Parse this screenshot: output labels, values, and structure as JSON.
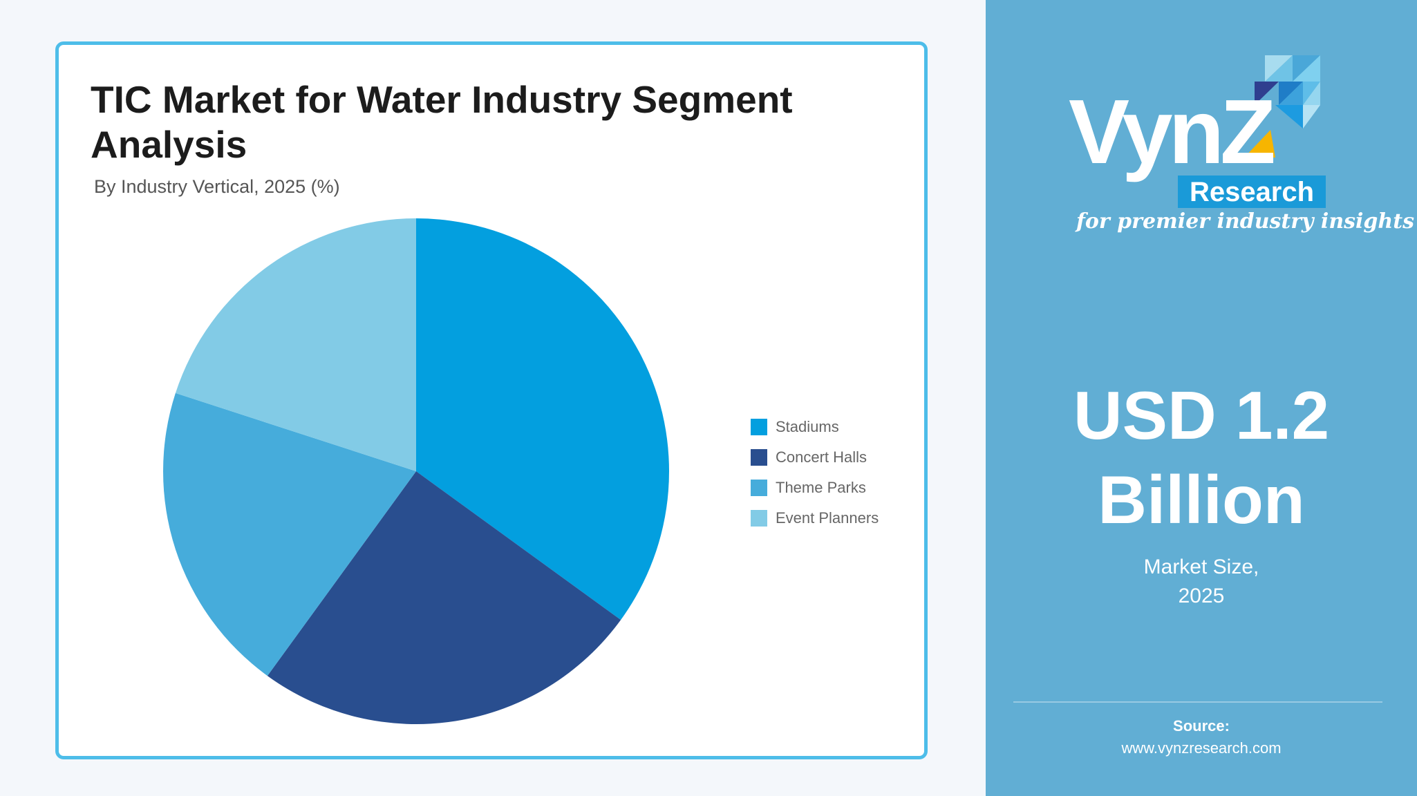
{
  "header": {
    "title": "TIC Market for Water Industry Segment Analysis",
    "subtitle": "By Industry Vertical, 2025 (%)"
  },
  "chart_data": {
    "type": "pie",
    "title": "TIC Market for Water Industry Segment Analysis",
    "subtitle": "By Industry Vertical, 2025 (%)",
    "categories": [
      "Stadiums",
      "Concert Halls",
      "Theme Parks",
      "Event Planners"
    ],
    "values": [
      35,
      25,
      20,
      20
    ],
    "colors": [
      "#039fdf",
      "#294e8f",
      "#46acdb",
      "#82cbe6"
    ],
    "legend_position": "right",
    "start_angle": "top, clockwise"
  },
  "side_panel": {
    "logo_main": "VynZ",
    "logo_sub": "Research",
    "tagline": "for premier industry insights",
    "market_value_line1": "USD 1.2",
    "market_value_line2": "Billion",
    "market_label_line1": "Market Size,",
    "market_label_line2": "2025",
    "source_label": "Source:",
    "source_url": "www.vynzresearch.com",
    "panel_color": "#61aed4",
    "accent_color": "#f7b500",
    "brand_blue": "#1a9ad8"
  }
}
